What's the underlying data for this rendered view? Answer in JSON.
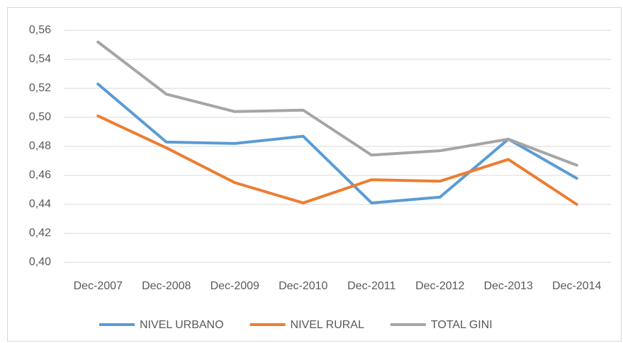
{
  "chart_data": {
    "type": "line",
    "categories": [
      "Dec-2007",
      "Dec-2008",
      "Dec-2009",
      "Dec-2010",
      "Dec-2011",
      "Dec-2012",
      "Dec-2013",
      "Dec-2014"
    ],
    "series": [
      {
        "name": "NIVEL URBANO",
        "color": "#5b9bd5",
        "values": [
          0.523,
          0.483,
          0.482,
          0.487,
          0.441,
          0.445,
          0.485,
          0.458
        ]
      },
      {
        "name": "NIVEL RURAL",
        "color": "#ed7d31",
        "values": [
          0.501,
          0.479,
          0.455,
          0.441,
          0.457,
          0.456,
          0.471,
          0.44
        ]
      },
      {
        "name": "TOTAL GINI",
        "color": "#a5a5a5",
        "values": [
          0.552,
          0.516,
          0.504,
          0.505,
          0.474,
          0.477,
          0.485,
          0.467
        ]
      }
    ],
    "ylim": [
      0.4,
      0.56
    ],
    "yticks": [
      {
        "value": 0.4,
        "label": "0,40"
      },
      {
        "value": 0.42,
        "label": "0,42"
      },
      {
        "value": 0.44,
        "label": "0,44"
      },
      {
        "value": 0.46,
        "label": "0,46"
      },
      {
        "value": 0.48,
        "label": "0,48"
      },
      {
        "value": 0.5,
        "label": "0,50"
      },
      {
        "value": 0.52,
        "label": "0,52"
      },
      {
        "value": 0.54,
        "label": "0,54"
      },
      {
        "value": 0.56,
        "label": "0,56"
      }
    ],
    "grid": true,
    "legend": "bottom"
  }
}
